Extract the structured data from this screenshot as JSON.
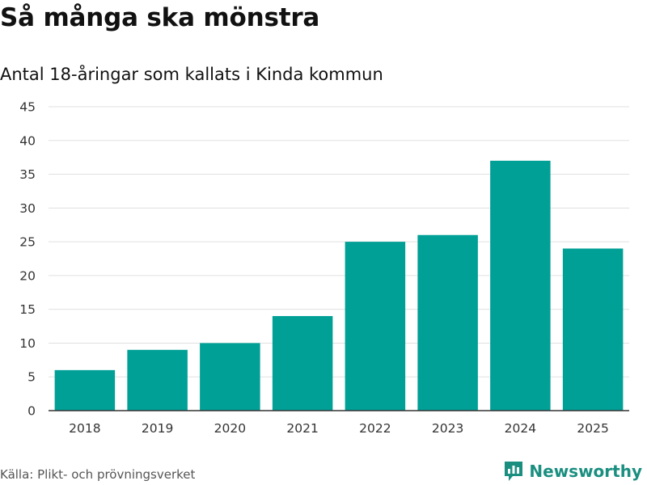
{
  "header": {
    "title": "Så många ska mönstra",
    "subtitle": "Antal 18-åringar som kallats i Kinda kommun"
  },
  "footer": {
    "source": "Källa: Plikt- och prövningsverket",
    "brand": "Newsworthy",
    "brand_icon": "bar-chart-logo-icon"
  },
  "colors": {
    "bar": "#00a096",
    "grid": "#e0e0e0",
    "axis": "#333333",
    "brand": "#1a8f80"
  },
  "chart_data": {
    "type": "bar",
    "title": "Så många ska mönstra",
    "subtitle": "Antal 18-åringar som kallats i Kinda kommun",
    "xlabel": "",
    "ylabel": "",
    "categories": [
      "2018",
      "2019",
      "2020",
      "2021",
      "2022",
      "2023",
      "2024",
      "2025"
    ],
    "values": [
      6,
      9,
      10,
      14,
      25,
      26,
      37,
      24
    ],
    "ylim": [
      0,
      45
    ],
    "yticks": [
      0,
      5,
      10,
      15,
      20,
      25,
      30,
      35,
      40,
      45
    ],
    "grid": true,
    "legend": "none"
  }
}
